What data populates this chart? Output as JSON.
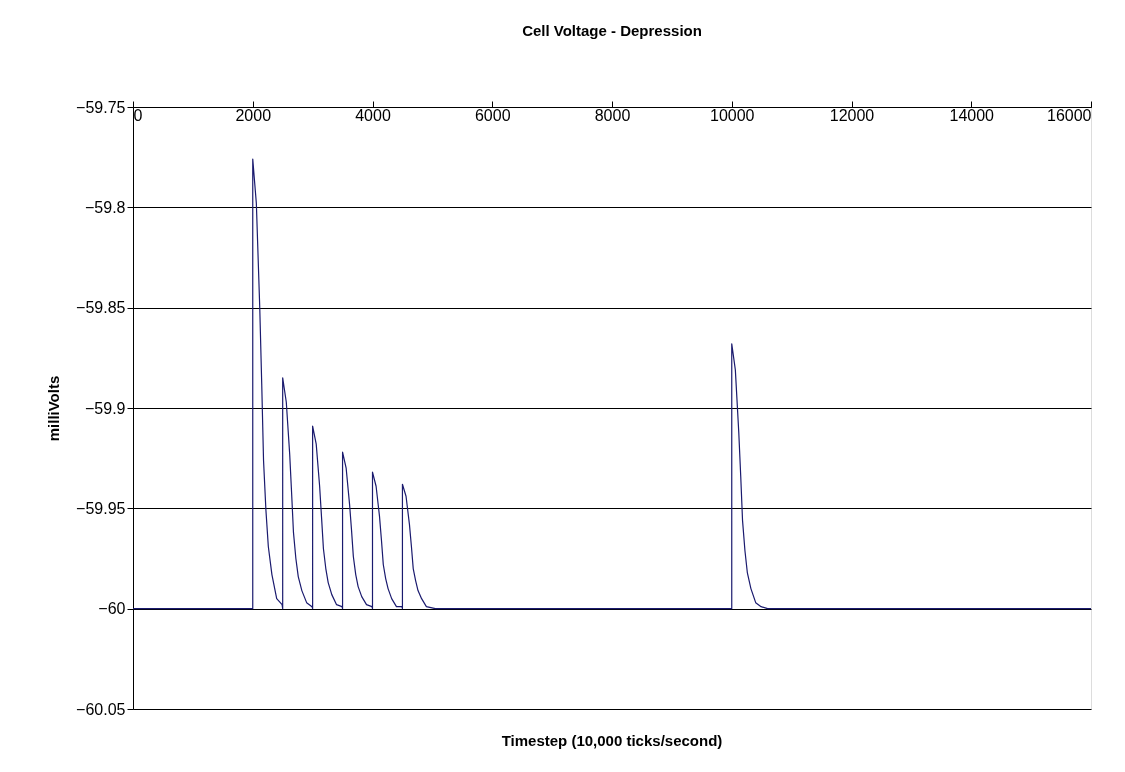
{
  "chart_data": {
    "type": "line",
    "title": "Cell Voltage -          Depression",
    "xlabel": "Timestep (10,000 ticks/second)",
    "ylabel": "milliVolts",
    "xlim": [
      0,
      16000
    ],
    "xticks": [
      0,
      2000,
      4000,
      6000,
      8000,
      10000,
      12000,
      14000,
      16000
    ],
    "ylim": [
      -60.05,
      -59.75
    ],
    "yticks": [
      -60.05,
      -60,
      -59.95,
      -59.9,
      -59.85,
      -59.8,
      -59.75
    ],
    "grid": "y",
    "legend": false,
    "marker": "none",
    "line_style": "solid",
    "series": [
      {
        "color": "#1a1a6e",
        "x": [
          0,
          2000,
          2000,
          2060,
          2117,
          2150,
          2180,
          2220,
          2260,
          2320,
          2400,
          2490,
          2500,
          2500,
          2560,
          2617,
          2650,
          2680,
          2720,
          2760,
          2820,
          2900,
          2990,
          3000,
          3000,
          3060,
          3117,
          3150,
          3180,
          3220,
          3260,
          3320,
          3400,
          3490,
          3500,
          3500,
          3560,
          3617,
          3650,
          3680,
          3720,
          3760,
          3820,
          3900,
          3990,
          4000,
          4000,
          4060,
          4117,
          4150,
          4180,
          4220,
          4260,
          4320,
          4400,
          4490,
          4500,
          4500,
          4560,
          4617,
          4650,
          4680,
          4720,
          4760,
          4820,
          4900,
          5050,
          10000,
          10000,
          10060,
          10117,
          10150,
          10180,
          10220,
          10260,
          10320,
          10400,
          10490,
          10600,
          16000
        ],
        "values": [
          -60,
          -60,
          -59.776,
          -59.798,
          -59.85,
          -59.888,
          -59.926,
          -59.951,
          -59.969,
          -59.983,
          -59.995,
          -59.998,
          -60,
          -59.885,
          -59.897,
          -59.923,
          -59.943,
          -59.962,
          -59.975,
          -59.984,
          -59.991,
          -59.997,
          -59.999,
          -60,
          -59.909,
          -59.918,
          -59.939,
          -59.955,
          -59.97,
          -59.98,
          -59.987,
          -59.993,
          -59.998,
          -59.999,
          -60,
          -59.922,
          -59.93,
          -59.948,
          -59.961,
          -59.974,
          -59.983,
          -59.989,
          -59.994,
          -59.998,
          -59.999,
          -60,
          -59.932,
          -59.939,
          -59.954,
          -59.966,
          -59.978,
          -59.985,
          -59.99,
          -59.995,
          -59.999,
          -59.999,
          -60,
          -59.938,
          -59.944,
          -59.958,
          -59.969,
          -59.98,
          -59.986,
          -59.991,
          -59.995,
          -59.999,
          -60,
          -60,
          -59.868,
          -59.881,
          -59.912,
          -59.934,
          -59.956,
          -59.971,
          -59.982,
          -59.99,
          -59.997,
          -59.999,
          -60,
          -60
        ]
      }
    ]
  }
}
